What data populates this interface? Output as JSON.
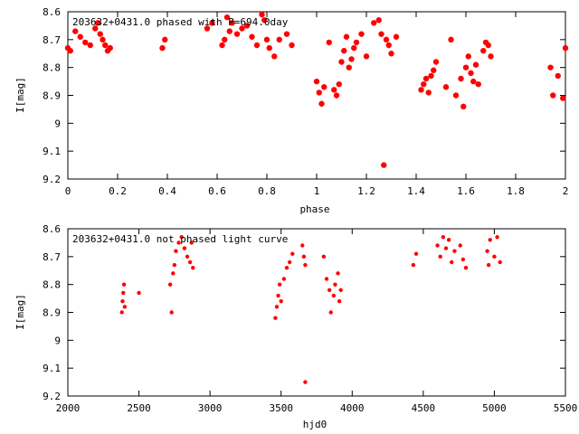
{
  "chart_data": [
    {
      "type": "scatter",
      "title": "203632+0431.0 phased with P=694.0day",
      "xlabel": "phase",
      "ylabel": "I[mag]",
      "xlim": [
        0,
        2
      ],
      "ylim": [
        8.6,
        9.2
      ],
      "y_inverted": true,
      "xticks": [
        "0",
        "0.2",
        "0.4",
        "0.6",
        "0.8",
        "1",
        "1.2",
        "1.4",
        "1.6",
        "1.8",
        "2"
      ],
      "yticks": [
        "8.6",
        "8.7",
        "8.8",
        "8.9",
        "9",
        "9.1",
        "9.2"
      ],
      "grid": false,
      "marker_color": "#ff0000",
      "series": [
        {
          "x": [
            0.0,
            0.01,
            0.03,
            0.05,
            0.07,
            0.09,
            0.11,
            0.12,
            0.13,
            0.14,
            0.15,
            0.16,
            0.17,
            0.38,
            0.39,
            0.56,
            0.58,
            0.62,
            0.63,
            0.64,
            0.65,
            0.66,
            0.68,
            0.7,
            0.72,
            0.74,
            0.76,
            0.78,
            0.79,
            0.8,
            0.81,
            0.83,
            0.85,
            0.88,
            0.9,
            1.0,
            1.01,
            1.02,
            1.03,
            1.05,
            1.07,
            1.08,
            1.09,
            1.1,
            1.11,
            1.12,
            1.13,
            1.14,
            1.15,
            1.16,
            1.18,
            1.2,
            1.23,
            1.25,
            1.26,
            1.27,
            1.28,
            1.29,
            1.3,
            1.32,
            1.42,
            1.43,
            1.44,
            1.45,
            1.46,
            1.47,
            1.48,
            1.52,
            1.54,
            1.56,
            1.58,
            1.59,
            1.6,
            1.61,
            1.62,
            1.63,
            1.64,
            1.65,
            1.67,
            1.68,
            1.69,
            1.7,
            1.94,
            1.95,
            1.97,
            1.99,
            2.0
          ],
          "y": [
            8.73,
            8.74,
            8.67,
            8.69,
            8.71,
            8.72,
            8.66,
            8.64,
            8.68,
            8.7,
            8.72,
            8.74,
            8.73,
            8.73,
            8.7,
            8.66,
            8.64,
            8.72,
            8.7,
            8.62,
            8.67,
            8.64,
            8.68,
            8.66,
            8.65,
            8.69,
            8.72,
            8.61,
            8.63,
            8.7,
            8.73,
            8.76,
            8.7,
            8.68,
            8.72,
            8.85,
            8.89,
            8.93,
            8.87,
            8.71,
            8.88,
            8.9,
            8.86,
            8.78,
            8.74,
            8.69,
            8.8,
            8.77,
            8.73,
            8.71,
            8.68,
            8.76,
            8.64,
            8.63,
            8.68,
            9.15,
            8.7,
            8.72,
            8.75,
            8.69,
            8.88,
            8.86,
            8.84,
            8.89,
            8.83,
            8.81,
            8.78,
            8.87,
            8.7,
            8.9,
            8.84,
            8.94,
            8.8,
            8.76,
            8.82,
            8.85,
            8.79,
            8.86,
            8.74,
            8.71,
            8.72,
            8.76,
            8.8,
            8.9,
            8.83,
            8.91,
            8.73
          ]
        }
      ]
    },
    {
      "type": "scatter",
      "title": "203632+0431.0 not phased light curve",
      "xlabel": "hjd0",
      "ylabel": "I[mag]",
      "xlim": [
        2000,
        5500
      ],
      "ylim": [
        8.6,
        9.2
      ],
      "y_inverted": true,
      "xticks": [
        "2000",
        "2500",
        "3000",
        "3500",
        "4000",
        "4500",
        "5000",
        "5500"
      ],
      "yticks": [
        "8.6",
        "8.7",
        "8.8",
        "8.9",
        "9",
        "9.1",
        "9.2"
      ],
      "grid": false,
      "marker_color": "#ff0000",
      "series": [
        {
          "x": [
            2380,
            2385,
            2390,
            2395,
            2400,
            2500,
            2720,
            2730,
            2740,
            2750,
            2760,
            2780,
            2800,
            2820,
            2840,
            2860,
            2870,
            2880,
            3460,
            3470,
            3480,
            3490,
            3500,
            3520,
            3540,
            3560,
            3580,
            3650,
            3660,
            3670,
            3670,
            3800,
            3820,
            3840,
            3850,
            3870,
            3880,
            3900,
            3910,
            3920,
            4430,
            4450,
            4600,
            4620,
            4640,
            4660,
            4680,
            4700,
            4720,
            4760,
            4780,
            4800,
            4950,
            4960,
            4970,
            5000,
            5020,
            5040
          ],
          "y": [
            8.9,
            8.86,
            8.83,
            8.8,
            8.88,
            8.83,
            8.8,
            8.9,
            8.76,
            8.73,
            8.68,
            8.65,
            8.63,
            8.67,
            8.7,
            8.72,
            8.65,
            8.74,
            8.92,
            8.88,
            8.84,
            8.8,
            8.86,
            8.78,
            8.74,
            8.72,
            8.69,
            8.66,
            8.7,
            8.73,
            9.15,
            8.7,
            8.78,
            8.82,
            8.9,
            8.84,
            8.8,
            8.76,
            8.86,
            8.82,
            8.73,
            8.69,
            8.66,
            8.7,
            8.63,
            8.67,
            8.64,
            8.72,
            8.68,
            8.66,
            8.71,
            8.74,
            8.68,
            8.73,
            8.64,
            8.7,
            8.63,
            8.72
          ]
        }
      ]
    }
  ]
}
